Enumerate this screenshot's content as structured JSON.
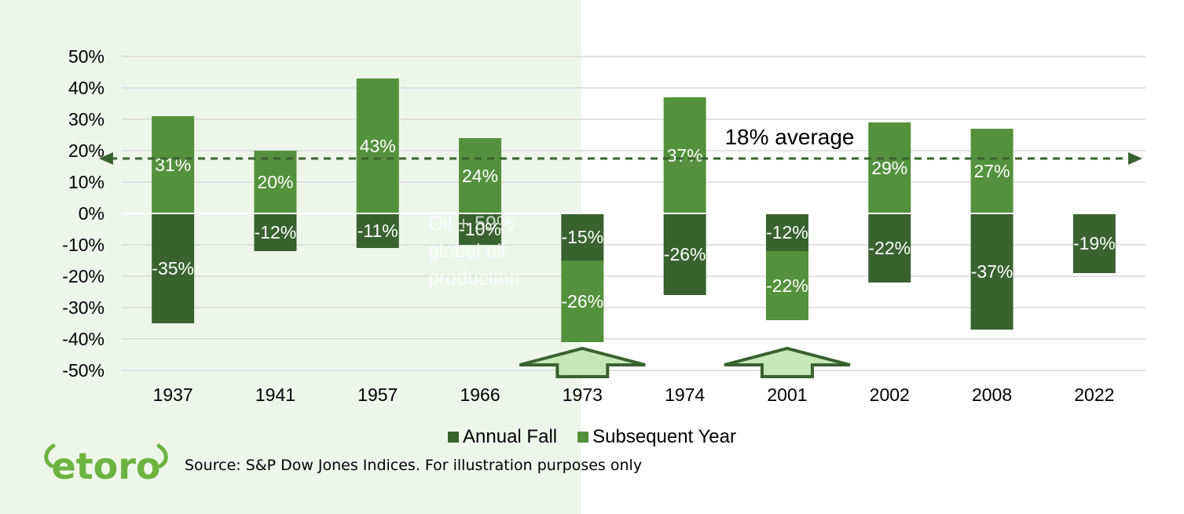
{
  "chart_data": {
    "type": "bar",
    "stacked": true,
    "categories": [
      "1937",
      "1941",
      "1957",
      "1966",
      "1973",
      "1974",
      "2001",
      "2002",
      "2008",
      "2022"
    ],
    "series": [
      {
        "name": "Annual Fall",
        "color": "#38622e",
        "values": [
          -35,
          -12,
          -11,
          -10,
          -15,
          -26,
          -12,
          -22,
          -37,
          -19
        ]
      },
      {
        "name": "Subsequent Year",
        "color": "#54913d",
        "values": [
          31,
          20,
          43,
          24,
          -26,
          37,
          -22,
          29,
          27,
          null
        ]
      }
    ],
    "value_labels": {
      "Annual Fall": [
        "-35%",
        "-12%",
        "-11%",
        "-10%",
        "-15%",
        "-26%",
        "-12%",
        "-22%",
        "-37%",
        "-19%"
      ],
      "Subsequent Year": [
        "31%",
        "20%",
        "43%",
        "24%",
        "-26%",
        "37%",
        "-22%",
        "29%",
        "27%",
        ""
      ]
    },
    "ylim": [
      -50,
      50
    ],
    "yticks": [
      50,
      40,
      30,
      20,
      10,
      0,
      -10,
      -20,
      -30,
      -40,
      -50
    ],
    "ytick_labels": [
      "50%",
      "40%",
      "30%",
      "20%",
      "10%",
      "0%",
      "-10%",
      "-20%",
      "-30%",
      "-40%",
      "-50%"
    ],
    "grid": true,
    "legend_position": "bottom",
    "average_line": {
      "value": 18,
      "label": "18% average",
      "color": "#38622e"
    },
    "annotation": {
      "lines": [
        "Oil + 59%",
        "global oil",
        "production"
      ]
    },
    "highlight_arrows": [
      "1973",
      "2001"
    ],
    "highlight_arrow_color": "#c5e8b9",
    "highlight_arrow_outline": "#38622e"
  },
  "source": "Source: S&P Dow Jones Indices. For illustration purposes only",
  "logo": {
    "text": "etoro",
    "color": "#6cb33f"
  },
  "colors": {
    "background_panel": "#eef6ea",
    "grid": "#d9d9d9",
    "axis": "#d9d9d9"
  }
}
